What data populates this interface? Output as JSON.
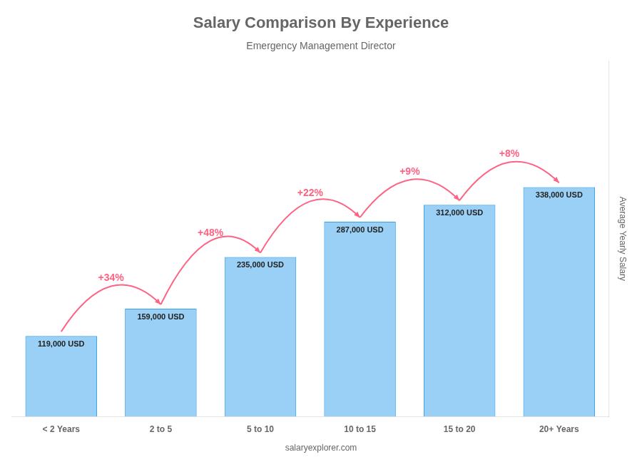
{
  "chart_data": {
    "type": "bar",
    "title": "Salary Comparison By Experience",
    "subtitle": "Emergency Management Director",
    "categories": [
      "< 2 Years",
      "2 to 5",
      "5 to 10",
      "10 to 15",
      "15 to 20",
      "20+ Years"
    ],
    "values": [
      119000,
      159000,
      235000,
      287000,
      312000,
      338000
    ],
    "value_labels": [
      "119,000 USD",
      "159,000 USD",
      "235,000 USD",
      "287,000 USD",
      "312,000 USD",
      "338,000 USD"
    ],
    "data_labels": true,
    "annotations": [
      "+34%",
      "+48%",
      "+22%",
      "+9%",
      "+8%"
    ],
    "ylabel": "Average Yearly Salary",
    "watermark": "salaryexplorer.com",
    "ylim": [
      0,
      523900
    ],
    "tick_labels": "x",
    "grid": false
  }
}
